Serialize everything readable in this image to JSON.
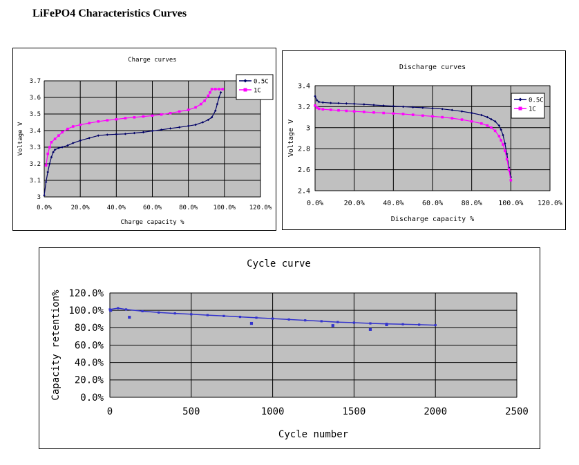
{
  "page": {
    "title": "LiFePO4 Characteristics Curves"
  },
  "chart_data": [
    {
      "id": "charge",
      "type": "line",
      "title": "Charge curves",
      "xlabel": "Charge capacity %",
      "ylabel": "Voltage V",
      "xlim": [
        0,
        120
      ],
      "ylim": [
        3.0,
        3.7
      ],
      "xticks": [
        0,
        20,
        40,
        60,
        80,
        100,
        120
      ],
      "xtick_labels": [
        "0.0%",
        "20.0%",
        "40.0%",
        "60.0%",
        "80.0%",
        "100.0%",
        "120.0%"
      ],
      "yticks": [
        3.0,
        3.1,
        3.2,
        3.3,
        3.4,
        3.5,
        3.6,
        3.7
      ],
      "ytick_labels": [
        "3",
        "3.1",
        "3.2",
        "3.3",
        "3.4",
        "3.5",
        "3.6",
        "3.7"
      ],
      "grid": true,
      "legend": "top-right",
      "series": [
        {
          "name": "0.5C",
          "color": "#000066",
          "marker": "diamond",
          "points": [
            [
              0,
              3.01
            ],
            [
              1,
              3.09
            ],
            [
              2,
              3.15
            ],
            [
              3,
              3.2
            ],
            [
              4,
              3.24
            ],
            [
              5,
              3.27
            ],
            [
              6,
              3.285
            ],
            [
              8,
              3.295
            ],
            [
              10,
              3.3
            ],
            [
              13,
              3.31
            ],
            [
              16,
              3.325
            ],
            [
              20,
              3.34
            ],
            [
              25,
              3.355
            ],
            [
              30,
              3.37
            ],
            [
              35,
              3.375
            ],
            [
              40,
              3.378
            ],
            [
              45,
              3.38
            ],
            [
              50,
              3.385
            ],
            [
              55,
              3.39
            ],
            [
              60,
              3.398
            ],
            [
              65,
              3.405
            ],
            [
              70,
              3.413
            ],
            [
              75,
              3.42
            ],
            [
              80,
              3.428
            ],
            [
              84,
              3.435
            ],
            [
              88,
              3.45
            ],
            [
              91,
              3.465
            ],
            [
              93,
              3.48
            ],
            [
              95,
              3.52
            ],
            [
              96,
              3.56
            ],
            [
              97,
              3.6
            ],
            [
              98,
              3.63
            ]
          ]
        },
        {
          "name": "1C",
          "color": "#ff00ff",
          "marker": "square",
          "points": [
            [
              1,
              3.19
            ],
            [
              2,
              3.26
            ],
            [
              3,
              3.3
            ],
            [
              4,
              3.33
            ],
            [
              6,
              3.35
            ],
            [
              8,
              3.37
            ],
            [
              10,
              3.39
            ],
            [
              13,
              3.41
            ],
            [
              16,
              3.425
            ],
            [
              20,
              3.435
            ],
            [
              25,
              3.445
            ],
            [
              30,
              3.455
            ],
            [
              35,
              3.462
            ],
            [
              40,
              3.468
            ],
            [
              45,
              3.475
            ],
            [
              50,
              3.48
            ],
            [
              55,
              3.485
            ],
            [
              60,
              3.49
            ],
            [
              65,
              3.497
            ],
            [
              70,
              3.505
            ],
            [
              75,
              3.515
            ],
            [
              80,
              3.525
            ],
            [
              84,
              3.54
            ],
            [
              87,
              3.56
            ],
            [
              89,
              3.58
            ],
            [
              91,
              3.61
            ],
            [
              92,
              3.63
            ],
            [
              93,
              3.65
            ],
            [
              95,
              3.65
            ],
            [
              97,
              3.65
            ],
            [
              99,
              3.65
            ]
          ]
        }
      ]
    },
    {
      "id": "discharge",
      "type": "line",
      "title": "Discharge curves",
      "xlabel": "Discharge capacity %",
      "ylabel": "Voltage V",
      "xlim": [
        0,
        120
      ],
      "ylim": [
        2.4,
        3.4
      ],
      "xticks": [
        0,
        20,
        40,
        60,
        80,
        100,
        120
      ],
      "xtick_labels": [
        "0.0%",
        "20.0%",
        "40.0%",
        "60.0%",
        "80.0%",
        "100.0%",
        "120.0%"
      ],
      "yticks": [
        2.4,
        2.6,
        2.8,
        3.0,
        3.2,
        3.4
      ],
      "ytick_labels": [
        "2.4",
        "2.6",
        "2.8",
        "3",
        "3.2",
        "3.4"
      ],
      "grid": true,
      "legend": "top-right",
      "series": [
        {
          "name": "0.5C",
          "color": "#000066",
          "marker": "diamond",
          "points": [
            [
              0,
              3.3
            ],
            [
              1,
              3.26
            ],
            [
              2,
              3.245
            ],
            [
              4,
              3.24
            ],
            [
              8,
              3.235
            ],
            [
              12,
              3.233
            ],
            [
              16,
              3.23
            ],
            [
              20,
              3.227
            ],
            [
              25,
              3.222
            ],
            [
              30,
              3.216
            ],
            [
              35,
              3.21
            ],
            [
              40,
              3.205
            ],
            [
              45,
              3.2
            ],
            [
              50,
              3.195
            ],
            [
              55,
              3.19
            ],
            [
              60,
              3.185
            ],
            [
              65,
              3.178
            ],
            [
              70,
              3.168
            ],
            [
              75,
              3.155
            ],
            [
              80,
              3.14
            ],
            [
              85,
              3.12
            ],
            [
              88,
              3.1
            ],
            [
              90,
              3.08
            ],
            [
              92,
              3.06
            ],
            [
              94,
              3.02
            ],
            [
              95,
              2.98
            ],
            [
              96,
              2.93
            ],
            [
              97,
              2.85
            ],
            [
              98,
              2.75
            ],
            [
              99,
              2.62
            ],
            [
              100,
              2.53
            ]
          ]
        },
        {
          "name": "1C",
          "color": "#ff00ff",
          "marker": "square",
          "points": [
            [
              0,
              3.21
            ],
            [
              1,
              3.19
            ],
            [
              2,
              3.18
            ],
            [
              4,
              3.175
            ],
            [
              8,
              3.17
            ],
            [
              12,
              3.165
            ],
            [
              16,
              3.16
            ],
            [
              20,
              3.155
            ],
            [
              25,
              3.15
            ],
            [
              30,
              3.145
            ],
            [
              35,
              3.14
            ],
            [
              40,
              3.135
            ],
            [
              45,
              3.13
            ],
            [
              50,
              3.123
            ],
            [
              55,
              3.115
            ],
            [
              60,
              3.108
            ],
            [
              65,
              3.1
            ],
            [
              70,
              3.09
            ],
            [
              75,
              3.077
            ],
            [
              80,
              3.06
            ],
            [
              85,
              3.04
            ],
            [
              88,
              3.02
            ],
            [
              90,
              3.0
            ],
            [
              92,
              2.97
            ],
            [
              94,
              2.92
            ],
            [
              95,
              2.88
            ],
            [
              96,
              2.84
            ],
            [
              97,
              2.78
            ],
            [
              98,
              2.7
            ],
            [
              99,
              2.6
            ],
            [
              100,
              2.5
            ]
          ]
        }
      ]
    },
    {
      "id": "cycle",
      "type": "scatter",
      "title": "Cycle curve",
      "xlabel": "Cycle number",
      "ylabel": "Capacity retention%",
      "xlim": [
        0,
        2500
      ],
      "ylim": [
        0,
        120
      ],
      "xticks": [
        0,
        500,
        1000,
        1500,
        2000,
        2500
      ],
      "xtick_labels": [
        "0",
        "500",
        "1000",
        "1500",
        "2000",
        "2500"
      ],
      "yticks": [
        0,
        20,
        40,
        60,
        80,
        100,
        120
      ],
      "ytick_labels": [
        "0.0%",
        "20.0%",
        "40.0%",
        "60.0%",
        "80.0%",
        "100.0%",
        "120.0%"
      ],
      "grid": true,
      "series": [
        {
          "color": "#3333cc",
          "marker": "square",
          "trend": [
            [
              0,
              101
            ],
            [
              50,
              102.5
            ],
            [
              100,
              101
            ],
            [
              200,
              99
            ],
            [
              300,
              97.5
            ],
            [
              400,
              96.5
            ],
            [
              500,
              95.5
            ],
            [
              600,
              94.5
            ],
            [
              700,
              93.5
            ],
            [
              800,
              92.5
            ],
            [
              900,
              91.5
            ],
            [
              1000,
              90.5
            ],
            [
              1100,
              89.5
            ],
            [
              1200,
              88.5
            ],
            [
              1300,
              87.5
            ],
            [
              1400,
              86.5
            ],
            [
              1500,
              85.8
            ],
            [
              1600,
              85
            ],
            [
              1700,
              84.5
            ],
            [
              1800,
              84
            ],
            [
              1900,
              83.5
            ],
            [
              2000,
              83
            ]
          ],
          "outliers": [
            [
              5,
              100
            ],
            [
              120,
              92
            ],
            [
              870,
              85
            ],
            [
              1370,
              82.5
            ],
            [
              1600,
              78
            ],
            [
              1700,
              83.5
            ]
          ]
        }
      ]
    }
  ]
}
